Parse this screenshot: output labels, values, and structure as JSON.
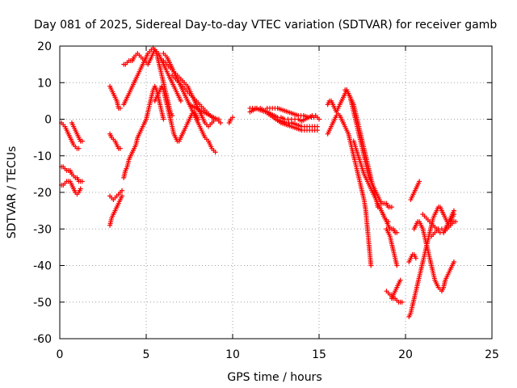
{
  "chart_data": {
    "type": "scatter",
    "title": "Day 081 of 2025, Sidereal Day-to-day VTEC variation (SDTVAR) for receiver gamb",
    "xlabel": "GPS time / hours",
    "ylabel": "SDTVAR / TECUs",
    "xlim": [
      0,
      25
    ],
    "ylim": [
      -60,
      20
    ],
    "xticks": [
      "0",
      "5",
      "10",
      "15",
      "20",
      "25"
    ],
    "yticks": [
      "20",
      "10",
      "0",
      "-10",
      "-20",
      "-30",
      "-40",
      "-50",
      "-60"
    ],
    "grid": true,
    "marker": "+",
    "color": "#ff0000",
    "series": [
      {
        "name": "s1",
        "x": [
          0.1,
          0.2,
          0.3,
          0.4,
          0.5,
          0.6,
          0.7,
          0.8,
          0.9,
          1.0,
          1.1
        ],
        "y": [
          -1,
          -1.5,
          -2,
          -3,
          -4,
          -5,
          -6,
          -7,
          -7.5,
          -8,
          -8
        ]
      },
      {
        "name": "s2",
        "x": [
          0.7,
          0.8,
          0.9,
          1.0,
          1.1,
          1.2,
          1.3
        ],
        "y": [
          -1,
          -2,
          -3,
          -4,
          -5,
          -6,
          -6
        ]
      },
      {
        "name": "s3",
        "x": [
          0.1,
          0.2,
          0.3,
          0.4,
          0.5,
          0.6,
          0.7,
          0.8,
          0.9,
          1.0,
          1.1,
          1.2,
          1.3
        ],
        "y": [
          -13,
          -13,
          -13.5,
          -14,
          -14,
          -14,
          -15,
          -15.5,
          -16,
          -16,
          -17,
          -17,
          -17
        ]
      },
      {
        "name": "s4",
        "x": [
          0.1,
          0.2,
          0.3,
          0.4,
          0.5,
          0.6,
          0.7,
          0.8,
          0.9,
          1.0,
          1.1,
          1.2
        ],
        "y": [
          -18,
          -18,
          -17.5,
          -17,
          -17,
          -17,
          -18,
          -19,
          -20,
          -20.5,
          -20,
          -19
        ]
      },
      {
        "name": "s5",
        "x": [
          2.9,
          3.0,
          3.1,
          3.2,
          3.3,
          3.4,
          3.5,
          3.6
        ],
        "y": [
          -29,
          -27,
          -26,
          -25,
          -24,
          -23,
          -22,
          -21
        ]
      },
      {
        "name": "s6",
        "x": [
          2.9,
          3.0,
          3.1,
          3.2,
          3.3,
          3.4,
          3.5,
          3.6
        ],
        "y": [
          -21,
          -21.5,
          -22,
          -21.5,
          -21,
          -20.5,
          -20,
          -19.5
        ]
      },
      {
        "name": "s7",
        "x": [
          2.9,
          3.0,
          3.1,
          3.2,
          3.3,
          3.4,
          3.5
        ],
        "y": [
          -4,
          -5,
          -5.5,
          -6,
          -7,
          -8,
          -8
        ]
      },
      {
        "name": "s8",
        "x": [
          2.9,
          3.0,
          3.1,
          3.2,
          3.3,
          3.4,
          3.5
        ],
        "y": [
          9,
          8,
          7,
          6,
          5,
          3,
          3
        ]
      },
      {
        "name": "s9",
        "x": [
          3.7,
          3.8,
          3.9,
          4.0,
          4.1,
          4.2,
          4.3,
          4.4,
          4.5,
          4.6,
          4.7,
          4.8,
          4.9,
          5.0,
          5.1,
          5.2,
          5.3,
          5.4,
          5.5,
          5.6,
          5.7,
          5.8,
          5.9,
          6.0
        ],
        "y": [
          -16,
          -14,
          -13,
          -11,
          -10,
          -9,
          -8,
          -7,
          -5,
          -4,
          -3,
          -2,
          -1,
          0,
          2,
          4,
          6,
          8,
          9,
          8,
          6,
          4,
          2,
          0
        ]
      },
      {
        "name": "s10",
        "x": [
          3.7,
          3.8,
          3.9,
          4.0,
          4.1,
          4.2,
          4.3,
          4.4,
          4.5,
          4.6,
          4.7,
          4.8,
          4.9,
          5.0,
          5.1,
          5.2,
          5.3,
          5.4,
          5.5,
          5.6,
          5.7,
          5.8,
          5.9,
          6.0,
          6.1,
          6.2,
          6.3,
          6.4,
          6.5
        ],
        "y": [
          4,
          5,
          6,
          7,
          8,
          9,
          10,
          11,
          12,
          13,
          14,
          15,
          16,
          17,
          18,
          18.5,
          19,
          19.5,
          19,
          18,
          16,
          14,
          12,
          10,
          8,
          6,
          4,
          2,
          1
        ]
      },
      {
        "name": "s11",
        "x": [
          3.7,
          3.8,
          3.9,
          4.0,
          4.1,
          4.2,
          4.3,
          4.4,
          4.5,
          4.6,
          4.7,
          4.8,
          4.9,
          5.0,
          5.1,
          5.2,
          5.3,
          5.4,
          5.5,
          5.6,
          5.7,
          5.8,
          5.9,
          6.0,
          6.1,
          6.2,
          6.3,
          6.4,
          6.5,
          6.6,
          6.7,
          6.8,
          6.9,
          7.0
        ],
        "y": [
          15,
          15,
          15.5,
          16,
          16,
          16,
          17,
          17.5,
          18,
          17.5,
          17,
          16.5,
          16,
          15.5,
          15,
          16,
          17,
          18,
          19,
          18.5,
          18,
          17,
          16,
          15,
          14,
          13,
          12,
          11,
          10,
          9,
          8,
          7,
          6,
          5
        ]
      },
      {
        "name": "s12",
        "x": [
          5.5,
          5.6,
          5.7,
          5.8,
          5.9,
          6.0,
          6.1,
          6.2,
          6.3,
          6.4,
          6.5,
          6.6,
          6.7,
          6.8,
          6.9,
          7.0,
          7.1,
          7.2,
          7.3,
          7.4,
          7.5,
          7.6,
          7.7,
          7.8,
          7.9,
          8.0
        ],
        "y": [
          5,
          6,
          7,
          8,
          9,
          8,
          6,
          4,
          2,
          0,
          -2,
          -4,
          -5,
          -6,
          -6,
          -5,
          -4,
          -3,
          -2,
          -1,
          0,
          1,
          2,
          2,
          1,
          0
        ]
      },
      {
        "name": "s13",
        "x": [
          6.0,
          6.2,
          6.4,
          6.6,
          6.8,
          7.0,
          7.2,
          7.4,
          7.6,
          7.8,
          8.0,
          8.2,
          8.4,
          8.6,
          8.8,
          9.0
        ],
        "y": [
          18,
          17,
          15,
          13,
          11,
          9,
          7,
          5,
          3,
          1,
          -1,
          -3,
          -5,
          -6,
          -8,
          -9
        ]
      },
      {
        "name": "s14",
        "x": [
          6.0,
          6.2,
          6.4,
          6.6,
          6.8,
          7.0,
          7.2,
          7.4,
          7.6,
          7.8,
          8.0,
          8.2,
          8.4,
          8.6,
          8.8,
          9.0,
          9.2
        ],
        "y": [
          16,
          15,
          14,
          13,
          12,
          11,
          10,
          9,
          7,
          5,
          3,
          1,
          -1,
          -2,
          -1,
          0,
          0
        ]
      },
      {
        "name": "s15",
        "x": [
          6.5,
          6.7,
          6.9,
          7.1,
          7.3,
          7.5,
          7.7,
          7.9,
          8.1,
          8.3,
          8.5,
          8.7,
          8.9
        ],
        "y": [
          12,
          11,
          10,
          9,
          8,
          7,
          6,
          5,
          4,
          3,
          2,
          1,
          0
        ]
      },
      {
        "name": "s16",
        "x": [
          7.5,
          7.7,
          7.9,
          8.1,
          8.3,
          8.5,
          8.7,
          8.9,
          9.1,
          9.3
        ],
        "y": [
          4,
          3.5,
          3,
          2.5,
          2,
          1.5,
          1,
          0.5,
          0,
          -1
        ]
      },
      {
        "name": "s17",
        "x": [
          9.8,
          9.9,
          10.0
        ],
        "y": [
          -1,
          0,
          0.5
        ]
      },
      {
        "name": "s18",
        "x": [
          11.0,
          11.2,
          11.4,
          11.6,
          11.8,
          12.0,
          12.2,
          12.4,
          12.6,
          12.8,
          13.0,
          13.2,
          13.4,
          13.6,
          13.8,
          14.0,
          14.2,
          14.4,
          14.6,
          14.8,
          15.0
        ],
        "y": [
          2,
          2.5,
          3,
          3,
          2.5,
          2,
          1.5,
          1,
          0.5,
          0.5,
          0,
          0,
          0,
          0,
          0,
          -0.5,
          0,
          0.5,
          1,
          1,
          0
        ]
      },
      {
        "name": "s19",
        "x": [
          11.0,
          11.3,
          11.6,
          11.9,
          12.2,
          12.5,
          12.8,
          13.1,
          13.4,
          13.7,
          14.0,
          14.3,
          14.6,
          14.9
        ],
        "y": [
          3,
          3,
          2.5,
          2,
          1,
          0,
          -1,
          -1.5,
          -2,
          -2.5,
          -3,
          -3,
          -3,
          -3
        ]
      },
      {
        "name": "s20",
        "x": [
          12.0,
          12.3,
          12.6,
          12.9,
          13.2,
          13.5,
          13.8,
          14.1,
          14.4,
          14.7
        ],
        "y": [
          3,
          3,
          3,
          2.5,
          2,
          1.5,
          1,
          1,
          0.5,
          0.5
        ]
      },
      {
        "name": "s21",
        "x": [
          12.5,
          12.8,
          13.1,
          13.4,
          13.7,
          14.0,
          14.3,
          14.6,
          14.9
        ],
        "y": [
          0,
          -0.5,
          -1,
          -1,
          -1.5,
          -2,
          -2,
          -2,
          -2
        ]
      },
      {
        "name": "s22",
        "x": [
          15.5,
          15.6,
          15.7,
          15.8,
          15.9,
          16.0,
          16.1,
          16.2,
          16.3,
          16.4,
          16.5,
          16.6,
          16.7,
          16.8,
          16.9,
          17.0,
          17.1,
          17.2,
          17.3,
          17.4,
          17.5,
          17.6,
          17.7,
          17.8,
          17.9,
          18.0
        ],
        "y": [
          -4,
          -3,
          -2,
          -1,
          0,
          1,
          1.5,
          1,
          0,
          -1,
          -2,
          -3,
          -4,
          -6,
          -8,
          -10,
          -12,
          -14,
          -16,
          -18,
          -20,
          -22,
          -25,
          -30,
          -35,
          -40
        ]
      },
      {
        "name": "s23",
        "x": [
          15.5,
          15.6,
          15.7,
          15.8,
          15.9,
          16.0,
          16.1,
          16.2,
          16.3,
          16.4,
          16.5,
          16.6,
          16.7,
          16.8,
          16.9,
          17.0,
          17.1,
          17.2,
          17.3,
          17.4,
          17.5,
          17.6,
          17.7,
          17.8,
          17.9,
          18.0,
          18.1,
          18.2,
          18.3,
          18.4,
          18.5
        ],
        "y": [
          4,
          5,
          5,
          4,
          3,
          2,
          3,
          4,
          5,
          6,
          7,
          8,
          7,
          6,
          5,
          4,
          2,
          0,
          -2,
          -4,
          -6,
          -8,
          -10,
          -12,
          -14,
          -16,
          -18,
          -20,
          -22,
          -24,
          -24
        ]
      },
      {
        "name": "s24",
        "x": [
          16.5,
          16.6,
          16.7,
          16.8,
          16.9,
          17.0,
          17.1,
          17.2,
          17.3,
          17.4,
          17.5,
          17.6,
          17.7,
          17.8,
          17.9,
          18.0,
          18.1,
          18.2,
          18.3,
          18.4,
          18.5,
          18.6,
          18.7,
          18.8,
          18.9,
          19.0,
          19.1,
          19.2
        ],
        "y": [
          8,
          8,
          7,
          6,
          4,
          2,
          0,
          -2,
          -4,
          -6,
          -8,
          -10,
          -12,
          -14,
          -16,
          -17,
          -18,
          -19,
          -20,
          -21,
          -22,
          -23,
          -23,
          -23,
          -23,
          -24,
          -24,
          -24
        ]
      },
      {
        "name": "s25",
        "x": [
          17.0,
          17.2,
          17.4,
          17.6,
          17.8,
          18.0,
          18.2,
          18.4,
          18.6,
          18.8,
          19.0
        ],
        "y": [
          -6,
          -9,
          -12,
          -15,
          -17,
          -19,
          -21,
          -23,
          -25,
          -27,
          -28
        ]
      },
      {
        "name": "s26",
        "x": [
          18.7,
          18.8,
          18.9,
          19.0,
          19.1,
          19.2,
          19.3,
          19.4,
          19.5
        ],
        "y": [
          -26,
          -27,
          -28,
          -29,
          -30,
          -30,
          -30,
          -31,
          -31
        ]
      },
      {
        "name": "s27",
        "x": [
          18.9,
          19.0,
          19.1,
          19.2,
          19.3,
          19.4,
          19.5
        ],
        "y": [
          -30,
          -31,
          -32,
          -34,
          -36,
          -38,
          -40
        ]
      },
      {
        "name": "s28",
        "x": [
          18.9,
          19.0,
          19.1,
          19.2,
          19.3,
          19.4,
          19.5,
          19.6,
          19.7,
          19.8
        ],
        "y": [
          -47,
          -47.5,
          -48,
          -48,
          -49,
          -49,
          -49.5,
          -50,
          -50,
          -50
        ]
      },
      {
        "name": "s29",
        "x": [
          19.2,
          19.3,
          19.4,
          19.5,
          19.6,
          19.7
        ],
        "y": [
          -49,
          -48,
          -47,
          -46,
          -45,
          -44
        ]
      },
      {
        "name": "s30",
        "x": [
          20.2,
          20.3,
          20.4,
          20.5,
          20.6,
          20.7,
          20.8,
          20.9,
          21.0,
          21.1,
          21.2,
          21.3,
          21.4,
          21.5,
          21.6,
          21.7,
          21.8,
          21.9,
          22.0,
          22.1,
          22.2,
          22.3,
          22.4,
          22.5,
          22.6,
          22.7,
          22.8
        ],
        "y": [
          -54,
          -53,
          -51,
          -49,
          -47,
          -45,
          -43,
          -41,
          -39,
          -37,
          -35,
          -33,
          -31,
          -29,
          -27,
          -26,
          -25,
          -24,
          -24,
          -25,
          -26,
          -27,
          -28,
          -28,
          -28,
          -27,
          -26
        ]
      },
      {
        "name": "s31",
        "x": [
          20.5,
          20.6,
          20.7,
          20.8,
          20.9,
          21.0,
          21.1,
          21.2,
          21.3,
          21.4,
          21.5,
          21.6,
          21.7,
          21.8,
          21.9,
          22.0,
          22.1,
          22.2,
          22.3,
          22.4,
          22.5,
          22.6,
          22.7,
          22.8
        ],
        "y": [
          -30,
          -29,
          -28,
          -28,
          -29,
          -30,
          -32,
          -34,
          -36,
          -38,
          -40,
          -42,
          -44,
          -45,
          -46,
          -46.5,
          -47,
          -46,
          -44,
          -43,
          -42,
          -41,
          -40,
          -39
        ]
      },
      {
        "name": "s32",
        "x": [
          20.3,
          20.4,
          20.5,
          20.6,
          20.7,
          20.8
        ],
        "y": [
          -22,
          -21,
          -20,
          -19,
          -18,
          -17
        ]
      },
      {
        "name": "s33",
        "x": [
          20.2,
          20.3,
          20.4,
          20.5,
          20.6
        ],
        "y": [
          -39,
          -38,
          -37,
          -37,
          -38
        ]
      },
      {
        "name": "s34",
        "x": [
          21.0,
          21.2,
          21.4,
          21.6,
          21.8,
          22.0,
          22.2,
          22.4,
          22.6,
          22.8
        ],
        "y": [
          -26,
          -27,
          -28,
          -29,
          -30,
          -31,
          -31,
          -30,
          -29,
          -28
        ]
      },
      {
        "name": "s35",
        "x": [
          21.5,
          21.7,
          21.9,
          22.1,
          22.3,
          22.5,
          22.7,
          22.9
        ],
        "y": [
          -32,
          -31,
          -30,
          -30,
          -30,
          -29,
          -28,
          -28
        ]
      },
      {
        "name": "s36",
        "x": [
          22.2,
          22.3,
          22.4,
          22.5,
          22.6,
          22.7,
          22.8
        ],
        "y": [
          -31,
          -30,
          -29,
          -28,
          -27,
          -26,
          -25
        ]
      }
    ]
  }
}
